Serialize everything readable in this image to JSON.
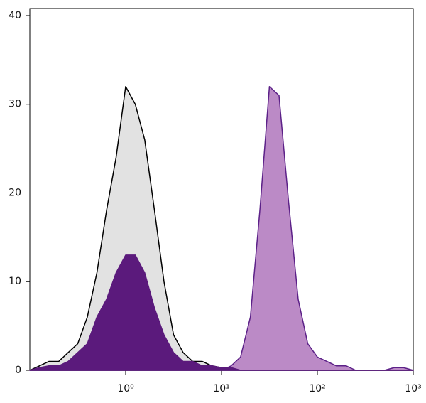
{
  "chart_data": {
    "type": "histogram-overlay",
    "x": [
      0.1,
      0.126,
      0.158,
      0.2,
      0.251,
      0.316,
      0.398,
      0.501,
      0.631,
      0.794,
      1,
      1.26,
      1.58,
      2,
      2.51,
      3.16,
      3.98,
      5.01,
      6.31,
      7.94,
      10,
      12.6,
      15.8,
      20,
      25.1,
      31.6,
      39.8,
      50.1,
      63.1,
      79.4,
      100,
      126,
      158,
      200,
      251,
      316,
      398,
      501,
      631,
      794,
      1000
    ],
    "series": [
      {
        "color": "#e2e2e2",
        "stroke": "#000000",
        "values": [
          0,
          0.5,
          1,
          1,
          2,
          3,
          6,
          11,
          18,
          24,
          32,
          30,
          26,
          18,
          10,
          4,
          2,
          1,
          1,
          0.5,
          0.3,
          0,
          0,
          0,
          0,
          0,
          0,
          0,
          0,
          0,
          0,
          0,
          0,
          0,
          0,
          0,
          0,
          0,
          0,
          0,
          0
        ]
      },
      {
        "color": "#bb8ac6",
        "stroke": "#5c2188",
        "values": [
          0,
          0,
          0,
          0,
          0,
          0,
          0,
          0,
          0,
          0,
          0,
          0,
          0,
          0,
          0,
          0,
          0,
          0,
          0,
          0,
          0,
          0.5,
          1.5,
          6,
          18,
          32,
          31,
          19,
          8,
          3,
          1.5,
          1,
          0.5,
          0.5,
          0,
          0,
          0,
          0,
          0.3,
          0.3,
          0
        ]
      },
      {
        "color": "#5b1a7c",
        "stroke": "#5b1a7c",
        "values": [
          0,
          0.3,
          0.5,
          0.5,
          1,
          2,
          3,
          6,
          8,
          11,
          13,
          13,
          11,
          7,
          4,
          2,
          1,
          1,
          0.5,
          0.5,
          0.3,
          0.3,
          0,
          0,
          0,
          0,
          0,
          0,
          0,
          0,
          0,
          0,
          0,
          0,
          0,
          0,
          0,
          0,
          0,
          0,
          0
        ]
      }
    ],
    "xlog": true,
    "xlim": [
      0.1,
      1000
    ],
    "ylim": [
      0,
      40.8
    ],
    "xticks": [
      {
        "value": 1,
        "label": "10⁰"
      },
      {
        "value": 10,
        "label": "10¹"
      },
      {
        "value": 100,
        "label": "10²"
      },
      {
        "value": 1000,
        "label": "10³"
      }
    ],
    "yticks": [
      0,
      10,
      20,
      30,
      40
    ]
  }
}
